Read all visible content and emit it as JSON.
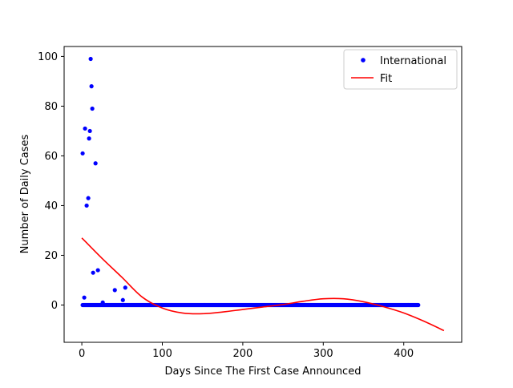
{
  "chart_data": {
    "type": "scatter",
    "xlabel": "Days Since The First Case Announced",
    "ylabel": "Number of Daily Cases",
    "xlim": [
      -22,
      472
    ],
    "ylim": [
      -15,
      104
    ],
    "xticks": [
      0,
      100,
      200,
      300,
      400
    ],
    "yticks": [
      0,
      20,
      40,
      60,
      80,
      100
    ],
    "grid": false,
    "legend": {
      "placement": "top-right",
      "entries": [
        {
          "label": "International",
          "marker": "dot",
          "color": "#0000ff"
        },
        {
          "label": "Fit",
          "marker": "line",
          "color": "#ff0000"
        }
      ]
    },
    "series": [
      {
        "name": "International",
        "kind": "scatter",
        "color": "#0000ff",
        "points": [
          [
            1,
            61
          ],
          [
            3,
            3
          ],
          [
            4,
            71
          ],
          [
            6,
            40
          ],
          [
            8,
            43
          ],
          [
            9,
            67
          ],
          [
            10,
            70
          ],
          [
            11,
            99
          ],
          [
            12,
            88
          ],
          [
            13,
            79
          ],
          [
            14,
            13
          ],
          [
            17,
            57
          ],
          [
            20,
            14
          ],
          [
            26,
            1
          ],
          [
            41,
            6
          ],
          [
            51,
            2
          ],
          [
            54,
            7
          ]
        ],
        "zero_range": [
          1,
          418
        ]
      },
      {
        "name": "Fit",
        "kind": "line",
        "color": "#ff0000",
        "points": [
          [
            0,
            27
          ],
          [
            25,
            18.8
          ],
          [
            50,
            11.1
          ],
          [
            75,
            3.2
          ],
          [
            100,
            -1.2
          ],
          [
            125,
            -3.2
          ],
          [
            150,
            -3.5
          ],
          [
            175,
            -2.8
          ],
          [
            200,
            -1.8
          ],
          [
            225,
            -0.8
          ],
          [
            250,
            0.2
          ],
          [
            275,
            1.5
          ],
          [
            300,
            2.5
          ],
          [
            325,
            2.5
          ],
          [
            350,
            1.3
          ],
          [
            375,
            -0.7
          ],
          [
            400,
            -3.2
          ],
          [
            425,
            -6.5
          ],
          [
            450,
            -10.3
          ]
        ]
      }
    ]
  }
}
